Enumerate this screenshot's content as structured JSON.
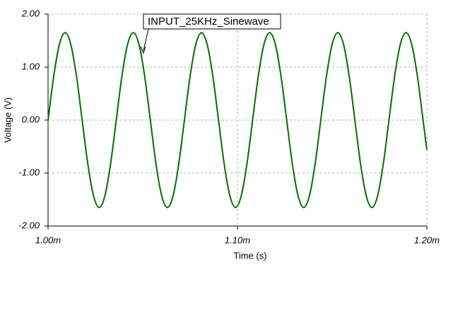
{
  "chart_data": {
    "type": "line",
    "annotation": "INPUT_25KHz_Sinewave",
    "xlabel": "Time (s)",
    "ylabel": "Voltage (V)",
    "x": [
      1.0,
      1.003,
      1.006,
      1.009,
      1.012,
      1.015,
      1.018,
      1.021,
      1.024,
      1.027,
      1.03,
      1.033,
      1.036,
      1.039,
      1.042,
      1.045,
      1.048,
      1.051,
      1.054,
      1.057,
      1.06,
      1.063,
      1.066,
      1.069,
      1.072,
      1.075,
      1.078,
      1.081,
      1.084,
      1.087,
      1.09,
      1.093,
      1.096,
      1.099,
      1.102,
      1.105,
      1.108,
      1.111,
      1.114,
      1.117,
      1.12,
      1.123,
      1.126,
      1.129,
      1.132,
      1.135,
      1.138,
      1.141,
      1.144,
      1.147,
      1.15,
      1.153,
      1.156,
      1.159,
      1.162,
      1.165,
      1.168,
      1.171,
      1.174,
      1.177,
      1.18,
      1.183,
      1.186,
      1.189,
      1.192,
      1.195,
      1.198,
      1.2
    ],
    "values": [
      0,
      0.83,
      1.43,
      1.65,
      1.43,
      0.83,
      0,
      -0.83,
      -1.43,
      -1.65,
      -1.43,
      -0.83,
      0,
      0.83,
      1.43,
      1.65,
      1.43,
      0.83,
      0,
      -0.83,
      -1.43,
      -1.65,
      -1.43,
      -0.83,
      0,
      0.83,
      1.43,
      1.65,
      1.43,
      0.83,
      0,
      -0.83,
      -1.43,
      -1.65,
      -1.43,
      -0.83,
      0,
      0.83,
      1.43,
      1.65,
      1.43,
      0.83,
      0,
      -0.83,
      -1.43,
      -1.65,
      -1.43,
      -0.83,
      0,
      0.83,
      1.43,
      1.65,
      1.43,
      0.83,
      0,
      -0.83,
      -1.43,
      -1.65,
      -1.43,
      -0.83,
      0,
      0.83,
      1.43,
      1.65,
      1.43,
      0.83,
      0,
      -0.56
    ],
    "color": "#007000",
    "xlim": [
      1.0,
      1.2
    ],
    "xticks": [
      {
        "value": 1.0,
        "label": "1.00m"
      },
      {
        "value": 1.1,
        "label": "1.10m"
      },
      {
        "value": 1.2,
        "label": "1.20m"
      }
    ],
    "ylim": [
      -2,
      2
    ],
    "yticks": [
      {
        "value": -2,
        "label": "-2.00"
      },
      {
        "value": -1,
        "label": "-1.00"
      },
      {
        "value": 0,
        "label": "0.00"
      },
      {
        "value": 1,
        "label": "1.00"
      },
      {
        "value": 2,
        "label": "2.00"
      }
    ],
    "grid": true
  }
}
